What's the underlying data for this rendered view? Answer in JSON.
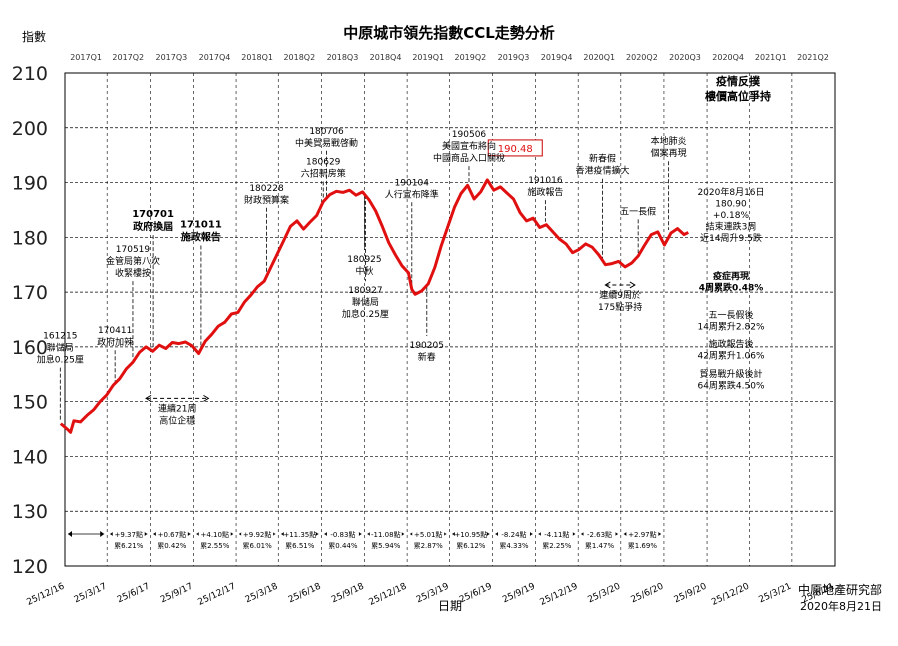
{
  "chart_data": {
    "type": "line",
    "title": "中原城市領先指數CCL走勢分析",
    "ylabel": "指數",
    "xlabel": "日期",
    "ylim": [
      120,
      210
    ],
    "yticks": [
      120,
      130,
      140,
      150,
      160,
      170,
      180,
      190,
      200,
      210
    ],
    "xlim": [
      "2016-12-25",
      "2021-06-25"
    ],
    "xticks": [
      "25/12/16",
      "25/3/17",
      "25/6/17",
      "25/9/17",
      "25/12/17",
      "25/3/18",
      "25/6/18",
      "25/9/18",
      "25/12/18",
      "25/3/19",
      "25/6/19",
      "25/9/19",
      "25/12/19",
      "25/3/20",
      "25/6/20",
      "25/9/20",
      "25/12/20",
      "25/3/21",
      "25/6/21"
    ],
    "quarters": [
      "2017Q1",
      "2017Q2",
      "2017Q3",
      "2017Q4",
      "2018Q1",
      "2018Q2",
      "2018Q3",
      "2018Q4",
      "2019Q1",
      "2019Q2",
      "2019Q3",
      "2019Q4",
      "2020Q1",
      "2020Q2",
      "2020Q3",
      "2020Q4",
      "2021Q1",
      "2021Q2"
    ],
    "grid": true,
    "series": [
      {
        "color": "#e01010",
        "points": [
          [
            "2016-12-16",
            146.0
          ],
          [
            "2016-12-30",
            145.0
          ],
          [
            "2017-01-06",
            144.4
          ],
          [
            "2017-01-13",
            146.5
          ],
          [
            "2017-01-27",
            146.3
          ],
          [
            "2017-02-10",
            147.5
          ],
          [
            "2017-02-24",
            148.5
          ],
          [
            "2017-03-10",
            150.0
          ],
          [
            "2017-03-24",
            151.2
          ],
          [
            "2017-04-07",
            153.0
          ],
          [
            "2017-04-21",
            154.2
          ],
          [
            "2017-05-05",
            156.0
          ],
          [
            "2017-05-19",
            157.2
          ],
          [
            "2017-06-02",
            159.0
          ],
          [
            "2017-06-16",
            160.0
          ],
          [
            "2017-06-30",
            159.2
          ],
          [
            "2017-07-14",
            160.3
          ],
          [
            "2017-07-28",
            159.7
          ],
          [
            "2017-08-11",
            160.8
          ],
          [
            "2017-08-25",
            160.6
          ],
          [
            "2017-09-08",
            160.9
          ],
          [
            "2017-09-22",
            160.2
          ],
          [
            "2017-10-06",
            158.8
          ],
          [
            "2017-10-20",
            161.0
          ],
          [
            "2017-11-03",
            162.3
          ],
          [
            "2017-11-17",
            163.8
          ],
          [
            "2017-12-01",
            164.5
          ],
          [
            "2017-12-15",
            166.0
          ],
          [
            "2017-12-29",
            166.3
          ],
          [
            "2018-01-12",
            168.2
          ],
          [
            "2018-01-26",
            169.5
          ],
          [
            "2018-02-09",
            171.0
          ],
          [
            "2018-02-23",
            172.0
          ],
          [
            "2018-03-09",
            174.5
          ],
          [
            "2018-03-23",
            177.0
          ],
          [
            "2018-04-06",
            179.5
          ],
          [
            "2018-04-20",
            182.0
          ],
          [
            "2018-05-04",
            183.0
          ],
          [
            "2018-05-18",
            181.5
          ],
          [
            "2018-06-01",
            182.8
          ],
          [
            "2018-06-15",
            184.0
          ],
          [
            "2018-06-29",
            186.5
          ],
          [
            "2018-07-13",
            187.8
          ],
          [
            "2018-07-27",
            188.4
          ],
          [
            "2018-08-10",
            188.2
          ],
          [
            "2018-08-24",
            188.6
          ],
          [
            "2018-09-07",
            187.7
          ],
          [
            "2018-09-21",
            188.3
          ],
          [
            "2018-10-05",
            186.8
          ],
          [
            "2018-10-19",
            184.8
          ],
          [
            "2018-11-02",
            182.0
          ],
          [
            "2018-11-16",
            179.0
          ],
          [
            "2018-11-30",
            176.8
          ],
          [
            "2018-12-14",
            174.8
          ],
          [
            "2018-12-28",
            173.5
          ],
          [
            "2019-01-04",
            170.5
          ],
          [
            "2019-01-11",
            169.6
          ],
          [
            "2019-01-25",
            170.2
          ],
          [
            "2019-02-08",
            171.5
          ],
          [
            "2019-02-22",
            174.5
          ],
          [
            "2019-03-08",
            178.5
          ],
          [
            "2019-03-22",
            182.0
          ],
          [
            "2019-04-05",
            185.5
          ],
          [
            "2019-04-19",
            188.0
          ],
          [
            "2019-05-03",
            189.5
          ],
          [
            "2019-05-17",
            187.0
          ],
          [
            "2019-05-31",
            188.3
          ],
          [
            "2019-06-14",
            190.48
          ],
          [
            "2019-06-28",
            188.6
          ],
          [
            "2019-07-12",
            189.2
          ],
          [
            "2019-07-26",
            188.1
          ],
          [
            "2019-08-09",
            187.0
          ],
          [
            "2019-08-23",
            184.5
          ],
          [
            "2019-09-06",
            183.0
          ],
          [
            "2019-09-20",
            183.5
          ],
          [
            "2019-10-04",
            181.8
          ],
          [
            "2019-10-18",
            182.3
          ],
          [
            "2019-11-01",
            181.0
          ],
          [
            "2019-11-15",
            179.7
          ],
          [
            "2019-11-29",
            178.8
          ],
          [
            "2019-12-13",
            177.2
          ],
          [
            "2019-12-27",
            177.8
          ],
          [
            "2020-01-10",
            178.8
          ],
          [
            "2020-01-24",
            178.2
          ],
          [
            "2020-02-07",
            176.8
          ],
          [
            "2020-02-21",
            175.0
          ],
          [
            "2020-03-06",
            175.2
          ],
          [
            "2020-03-20",
            175.6
          ],
          [
            "2020-04-03",
            174.6
          ],
          [
            "2020-04-17",
            175.3
          ],
          [
            "2020-05-01",
            176.6
          ],
          [
            "2020-05-15",
            178.6
          ],
          [
            "2020-05-29",
            180.5
          ],
          [
            "2020-06-12",
            181.0
          ],
          [
            "2020-06-26",
            178.6
          ],
          [
            "2020-07-10",
            180.8
          ],
          [
            "2020-07-24",
            181.6
          ],
          [
            "2020-08-07",
            180.5
          ],
          [
            "2020-08-16",
            180.9
          ]
        ]
      }
    ],
    "event_labels": [
      {
        "date": "2016-12-15",
        "y": 161.5,
        "lines": [
          "161215",
          "聯儲局",
          "加息0.25厘"
        ],
        "bold": false,
        "size": 9
      },
      {
        "date": "2017-04-11",
        "y": 162.5,
        "lines": [
          "170411",
          "政府加辣"
        ],
        "bold": false,
        "size": 9
      },
      {
        "date": "2017-05-19",
        "y": 177.3,
        "lines": [
          "170519",
          "金管局第八次",
          "收緊樓按"
        ],
        "bold": false,
        "size": 9
      },
      {
        "date": "2017-07-01",
        "y": 183.7,
        "lines": [
          "170701",
          "政府換屆"
        ],
        "bold": true,
        "size": 10
      },
      {
        "date": "2017-10-11",
        "y": 181.8,
        "lines": [
          "171011",
          "施政報告"
        ],
        "bold": true,
        "size": 10
      },
      {
        "date": "2018-02-28",
        "y": 188.5,
        "lines": [
          "180228",
          "財政預算案"
        ],
        "bold": false,
        "size": 9
      },
      {
        "date": "2018-07-06",
        "y": 198.9,
        "lines": [
          "180706",
          "中美貿易戰啓動"
        ],
        "bold": false,
        "size": 9
      },
      {
        "date": "2018-06-29",
        "y": 193.3,
        "lines": [
          "180629",
          "六招新房策"
        ],
        "bold": false,
        "size": 9
      },
      {
        "date": "2018-09-25",
        "y": 175.5,
        "lines": [
          "180925",
          "中秋"
        ],
        "bold": false,
        "size": 9
      },
      {
        "date": "2018-09-27",
        "y": 169.8,
        "lines": [
          "180927",
          "聯儲局",
          "加息0.25厘"
        ],
        "bold": false,
        "size": 9
      },
      {
        "date": "2019-01-04",
        "y": 189.5,
        "lines": [
          "190104",
          "人行宣布降準"
        ],
        "bold": false,
        "size": 9
      },
      {
        "date": "2019-02-05",
        "y": 159.8,
        "lines": [
          "190205",
          "新春"
        ],
        "bold": false,
        "size": 9
      },
      {
        "date": "2019-05-06",
        "y": 198.3,
        "lines": [
          "190506",
          "美國宣布將向",
          "中國商品入口關稅"
        ],
        "bold": false,
        "size": 9
      },
      {
        "date": "2019-10-16",
        "y": 189.9,
        "lines": [
          "191016",
          "施政報告"
        ],
        "bold": false,
        "size": 9
      },
      {
        "date": "2020-02-15",
        "y": 193.8,
        "lines": [
          "新春假",
          "香港疫情擴大"
        ],
        "bold": false,
        "size": 9
      },
      {
        "date": "2020-05-01",
        "y": 184.2,
        "lines": [
          "五一長假"
        ],
        "bold": false,
        "size": 9
      },
      {
        "date": "2020-07-05",
        "y": 197.0,
        "lines": [
          "本地肺炎",
          "個案再現"
        ],
        "bold": false,
        "size": 9
      },
      {
        "date": "2019-11-25",
        "y": 148.5,
        "lines": [
          "疫情反撲",
          "樓價高位爭持"
        ],
        "bold": true,
        "size": 10,
        "panel": true
      }
    ],
    "peak_label": {
      "date": "2019-06-14",
      "value": "190.48",
      "color": "#e01010"
    },
    "annotation_blocks": [
      {
        "y": 187.7,
        "lines": [
          "2020年8月16日",
          "180.90",
          "+0.18%",
          "結束連跌3周",
          "近14周升9.5跌"
        ],
        "bold": false
      },
      {
        "y": 172.4,
        "lines": [
          "疫症再現",
          "4周累跌0.48%"
        ],
        "bold": true
      },
      {
        "y": 165.3,
        "lines": [
          "五一長假後",
          "14周累升2.82%"
        ],
        "bold": false
      },
      {
        "y": 160.0,
        "lines": [
          "施政報告後",
          "42周累升1.06%"
        ],
        "bold": false
      },
      {
        "y": 154.5,
        "lines": [
          "貿易戰升級後計",
          "64周累跌4.50%"
        ],
        "bold": false
      }
    ],
    "ranges": [
      {
        "start": "2017-06-16",
        "end": "2017-10-27",
        "y": 150.6,
        "lines": [
          "連續21周",
          "高位企穩"
        ]
      },
      {
        "start": "2020-02-21",
        "end": "2020-04-24",
        "y": 171.3,
        "lines": [
          "連續9周於",
          "175點爭持"
        ]
      }
    ],
    "quarter_changes": [
      {
        "start": "2016-12-25",
        "end": "2017-03-25",
        "lines": [
          "",
          ""
        ]
      },
      {
        "start": "2017-03-25",
        "end": "2017-06-25",
        "lines": [
          "+9.37點",
          "累6.21%"
        ]
      },
      {
        "start": "2017-06-25",
        "end": "2017-09-25",
        "lines": [
          "+0.67點",
          "累0.42%"
        ]
      },
      {
        "start": "2017-09-25",
        "end": "2017-12-25",
        "lines": [
          "+4.10點",
          "累2.55%"
        ]
      },
      {
        "start": "2017-12-25",
        "end": "2018-03-25",
        "lines": [
          "+9.92點",
          "累6.01%"
        ]
      },
      {
        "start": "2018-03-25",
        "end": "2018-06-25",
        "lines": [
          "+11.35點",
          "累6.51%"
        ]
      },
      {
        "start": "2018-06-25",
        "end": "2018-09-25",
        "lines": [
          "-0.83點",
          "累0.44%"
        ]
      },
      {
        "start": "2018-09-25",
        "end": "2018-12-25",
        "lines": [
          "-11.08點",
          "累5.94%"
        ]
      },
      {
        "start": "2018-12-25",
        "end": "2019-03-25",
        "lines": [
          "+5.01點",
          "累2.87%"
        ]
      },
      {
        "start": "2019-03-25",
        "end": "2019-06-25",
        "lines": [
          "+10.95點",
          "累6.12%"
        ]
      },
      {
        "start": "2019-06-25",
        "end": "2019-09-25",
        "lines": [
          "-8.24點",
          "累4.33%"
        ]
      },
      {
        "start": "2019-09-25",
        "end": "2019-12-25",
        "lines": [
          "-4.11點",
          "累2.25%"
        ]
      },
      {
        "start": "2019-12-25",
        "end": "2020-03-25",
        "lines": [
          "-2.63點",
          "累1.47%"
        ]
      },
      {
        "start": "2020-03-25",
        "end": "2020-06-25",
        "lines": [
          "+2.97點",
          "累1.69%"
        ]
      }
    ]
  },
  "footer": {
    "source": "中原地產研究部",
    "date": "2020年8月21日"
  }
}
